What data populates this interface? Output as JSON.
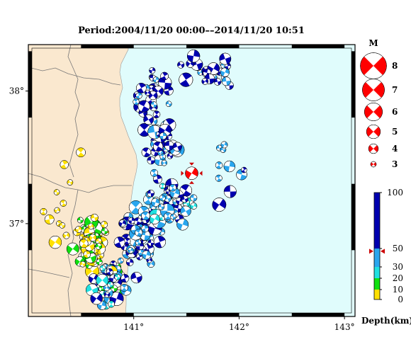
{
  "title": "Period:2004/11/20 00:00––2014/11/20 10:51",
  "map": {
    "lon_range": [
      140.0,
      143.1
    ],
    "lat_range": [
      36.3,
      38.35
    ],
    "lon_ticks": [
      {
        "value": 141,
        "label": "141°"
      },
      {
        "value": 142,
        "label": "142°"
      },
      {
        "value": 143,
        "label": "143°"
      }
    ],
    "lat_ticks": [
      {
        "value": 38,
        "label": "38°"
      },
      {
        "value": 37,
        "label": "37°"
      }
    ],
    "colors": {
      "land": "#fae8cf",
      "sea": "#e0fcfc",
      "frame": "#000000"
    }
  },
  "magnitude_legend": {
    "header": "M",
    "items": [
      {
        "label": "8",
        "magnitude": 8
      },
      {
        "label": "7",
        "magnitude": 7
      },
      {
        "label": "6",
        "magnitude": 6
      },
      {
        "label": "5",
        "magnitude": 5
      },
      {
        "label": "4",
        "magnitude": 4
      },
      {
        "label": "3",
        "magnitude": 3
      }
    ]
  },
  "depth_scale": {
    "label": "Depth(km)",
    "ticks": [
      {
        "value": 100,
        "label": "100"
      },
      {
        "value": 50,
        "label": "50"
      },
      {
        "value": 30,
        "label": "30"
      },
      {
        "value": 20,
        "label": "20"
      },
      {
        "value": 10,
        "label": "10"
      },
      {
        "value": 0,
        "label": "0"
      }
    ],
    "marker_depth": 47,
    "bands": [
      {
        "from": 0,
        "to": 10,
        "color": "#ffe000"
      },
      {
        "from": 10,
        "to": 20,
        "color": "#10e010"
      },
      {
        "from": 20,
        "to": 30,
        "color": "#20e0e0"
      },
      {
        "from": 30,
        "to": 50,
        "color": "#2aa6ee"
      },
      {
        "from": 50,
        "to": 100,
        "color": "#0000b0"
      }
    ]
  },
  "highlight_event": {
    "lon": 141.55,
    "lat": 37.38,
    "magnitude": 6.0,
    "color": "#ff0000"
  },
  "events_seed": 20141120
}
